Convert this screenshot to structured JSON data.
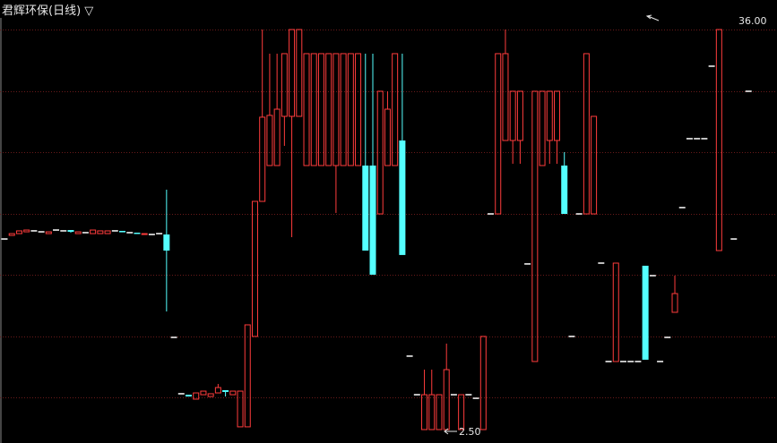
{
  "header": {
    "title": "君辉环保(日线)",
    "menu_icon": "triangle-down-icon",
    "menu_glyph": "▽"
  },
  "colors": {
    "up": "#ff3c3c",
    "down": "#54ffff",
    "doji": "#ffffff",
    "grid": "#6a1a1a",
    "background": "#000000"
  },
  "chart_data": {
    "type": "candlestick",
    "title": "君辉环保(日线)",
    "ylim": [
      2.5,
      36.0
    ],
    "grid": true,
    "annotations": [
      {
        "label": "36.00",
        "value": 36.0,
        "kind": "max"
      },
      {
        "label": "2.50",
        "value": 2.5,
        "kind": "min"
      }
    ],
    "candles_ohlc": [
      [
        18.46,
        18.46,
        18.46,
        18.46
      ],
      [
        18.76,
        18.91,
        18.76,
        18.91
      ],
      [
        18.91,
        19.14,
        18.91,
        19.14
      ],
      [
        19.06,
        19.21,
        19.06,
        19.21
      ],
      [
        19.14,
        19.14,
        19.14,
        19.14
      ],
      [
        19.06,
        19.06,
        19.06,
        19.06
      ],
      [
        18.91,
        19.06,
        18.91,
        19.06
      ],
      [
        19.21,
        19.21,
        19.21,
        19.21
      ],
      [
        19.14,
        19.14,
        19.14,
        19.14
      ],
      [
        19.21,
        19.21,
        18.99,
        19.06
      ],
      [
        18.91,
        19.06,
        18.91,
        19.06
      ],
      [
        18.99,
        18.99,
        18.99,
        18.99
      ],
      [
        18.91,
        19.21,
        18.91,
        19.21
      ],
      [
        18.91,
        19.14,
        18.91,
        19.14
      ],
      [
        18.91,
        19.14,
        18.91,
        19.14
      ],
      [
        19.14,
        19.14,
        19.14,
        19.14
      ],
      [
        19.14,
        19.14,
        19.02,
        19.02
      ],
      [
        18.99,
        18.99,
        18.99,
        18.99
      ],
      [
        18.99,
        18.99,
        18.91,
        18.91
      ],
      [
        18.84,
        18.91,
        18.84,
        18.91
      ],
      [
        18.84,
        18.84,
        18.84,
        18.84
      ],
      [
        18.91,
        18.91,
        18.91,
        18.91
      ],
      [
        18.84,
        22.59,
        12.39,
        17.49
      ],
      [
        10.22,
        10.22,
        10.22,
        10.22
      ],
      [
        5.5,
        5.5,
        5.5,
        5.5
      ],
      [
        5.42,
        5.42,
        5.27,
        5.27
      ],
      [
        5.05,
        5.57,
        5.05,
        5.57
      ],
      [
        5.42,
        5.72,
        5.42,
        5.72
      ],
      [
        5.27,
        5.5,
        5.27,
        5.5
      ],
      [
        5.57,
        6.32,
        5.57,
        6.02
      ],
      [
        5.8,
        5.8,
        5.27,
        5.65
      ],
      [
        5.42,
        5.72,
        5.42,
        5.72
      ],
      [
        2.73,
        5.72,
        2.73,
        5.72
      ],
      [
        2.73,
        11.27,
        2.73,
        11.27
      ],
      [
        10.3,
        21.61,
        10.3,
        21.61
      ],
      [
        21.61,
        36.0,
        21.61,
        28.66
      ],
      [
        24.61,
        33.98,
        24.61,
        28.81
      ],
      [
        24.61,
        33.98,
        24.61,
        29.33
      ],
      [
        28.73,
        33.98,
        26.26,
        33.98
      ],
      [
        28.73,
        36.0,
        18.61,
        36.0
      ],
      [
        28.73,
        36.0,
        28.73,
        36.0
      ],
      [
        24.61,
        33.98,
        24.61,
        33.98
      ],
      [
        24.61,
        33.98,
        24.61,
        33.98
      ],
      [
        24.61,
        33.98,
        24.61,
        33.98
      ],
      [
        24.61,
        33.98,
        24.61,
        33.98
      ],
      [
        24.61,
        33.98,
        20.64,
        33.98
      ],
      [
        24.61,
        33.98,
        24.61,
        33.98
      ],
      [
        24.61,
        33.98,
        24.61,
        33.98
      ],
      [
        24.61,
        33.98,
        24.61,
        33.98
      ],
      [
        24.61,
        33.98,
        17.49,
        17.49
      ],
      [
        24.61,
        33.98,
        15.47,
        15.47
      ],
      [
        20.56,
        30.83,
        20.56,
        30.83
      ],
      [
        24.61,
        30.83,
        24.61,
        29.33
      ],
      [
        24.61,
        33.98,
        24.61,
        33.98
      ],
      [
        26.71,
        33.98,
        17.12,
        17.12
      ],
      [
        8.65,
        8.65,
        8.65,
        8.65
      ],
      [
        5.42,
        5.42,
        5.42,
        5.42
      ],
      [
        2.5,
        7.52,
        2.5,
        5.42
      ],
      [
        2.5,
        7.52,
        2.5,
        5.42
      ],
      [
        2.5,
        5.42,
        2.5,
        5.42
      ],
      [
        2.5,
        9.7,
        2.5,
        7.52
      ],
      [
        5.42,
        5.42,
        5.42,
        5.42
      ],
      [
        2.5,
        5.42,
        2.5,
        5.42
      ],
      [
        5.42,
        5.42,
        5.42,
        5.42
      ],
      [
        5.12,
        5.12,
        5.12,
        5.12
      ],
      [
        2.5,
        10.3,
        2.5,
        10.3
      ],
      [
        20.56,
        20.56,
        20.56,
        20.56
      ],
      [
        20.56,
        33.98,
        20.56,
        33.98
      ],
      [
        26.71,
        36.0,
        26.71,
        33.98
      ],
      [
        26.71,
        30.83,
        24.76,
        30.83
      ],
      [
        26.71,
        30.83,
        24.76,
        30.83
      ],
      [
        16.37,
        16.37,
        16.37,
        16.37
      ],
      [
        8.2,
        30.83,
        8.2,
        30.83
      ],
      [
        24.61,
        30.83,
        24.61,
        30.83
      ],
      [
        26.71,
        30.83,
        24.76,
        30.83
      ],
      [
        26.71,
        30.83,
        24.76,
        30.83
      ],
      [
        24.61,
        25.73,
        20.56,
        20.56
      ],
      [
        10.3,
        10.3,
        10.3,
        10.3
      ],
      [
        20.56,
        20.56,
        20.56,
        20.56
      ],
      [
        20.56,
        33.98,
        20.56,
        33.98
      ],
      [
        20.56,
        28.73,
        20.56,
        28.73
      ],
      [
        16.44,
        16.44,
        16.44,
        16.44
      ],
      [
        8.2,
        8.2,
        8.2,
        8.2
      ],
      [
        8.2,
        16.44,
        8.2,
        16.44
      ],
      [
        8.2,
        8.2,
        8.2,
        8.2
      ],
      [
        8.2,
        8.2,
        8.2,
        8.2
      ],
      [
        8.2,
        8.2,
        8.2,
        8.2
      ],
      [
        16.22,
        16.22,
        8.35,
        8.35
      ],
      [
        15.39,
        15.39,
        15.39,
        15.39
      ],
      [
        8.2,
        8.2,
        8.2,
        8.2
      ],
      [
        10.22,
        10.22,
        10.22,
        10.22
      ],
      [
        12.32,
        15.39,
        12.32,
        13.89
      ],
      [
        21.09,
        21.09,
        21.09,
        21.09
      ],
      [
        26.86,
        26.86,
        26.86,
        26.86
      ],
      [
        26.86,
        26.86,
        26.86,
        26.86
      ],
      [
        26.86,
        26.86,
        26.86,
        26.86
      ],
      [
        32.93,
        32.93,
        32.93,
        32.93
      ],
      [
        17.49,
        36.0,
        17.49,
        36.0
      ],
      null,
      [
        18.46,
        18.46,
        18.46,
        18.46
      ],
      null,
      [
        30.83,
        30.83,
        30.83,
        30.83
      ]
    ]
  }
}
